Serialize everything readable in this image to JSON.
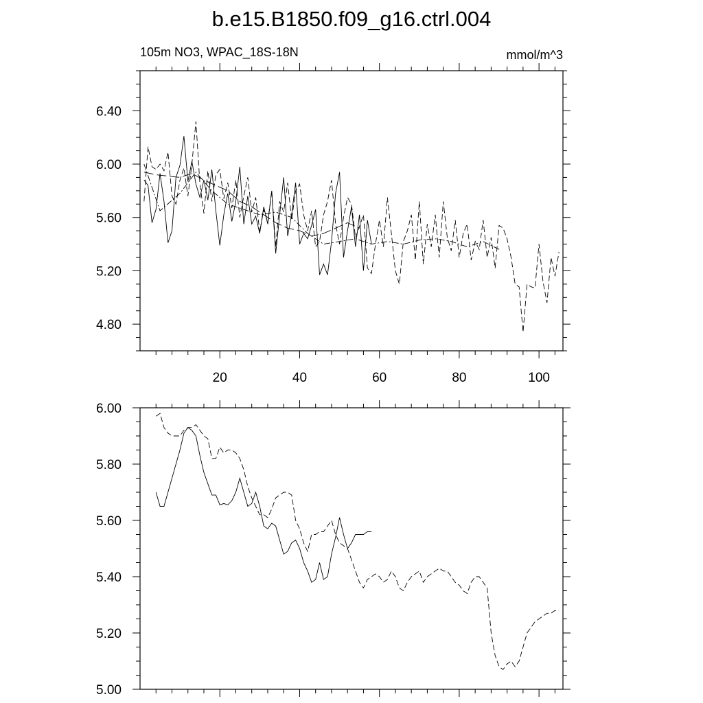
{
  "figure": {
    "title": "b.e15.B1850.f09_g16.ctrl.004",
    "left_string": "105m NO3, WPAC_18S-18N",
    "right_string": "mmol/m^3"
  },
  "chart_data": [
    {
      "type": "line",
      "title": "b.e15.B1850.f09_g16.ctrl.004",
      "xlabel": "",
      "ylabel": "",
      "xlim": [
        0,
        106
      ],
      "ylim": [
        4.6,
        6.7
      ],
      "x_ticks": [
        20,
        40,
        60,
        80,
        100
      ],
      "y_ticks": [
        4.8,
        5.2,
        5.6,
        6.0,
        6.4
      ],
      "y_tick_labels": [
        "4.80",
        "5.20",
        "5.60",
        "6.00",
        "6.40"
      ],
      "grid": false,
      "series": [
        {
          "style": "solid",
          "x": [
            1,
            2,
            3,
            4,
            5,
            6,
            7,
            8,
            9,
            10,
            11,
            12,
            13,
            14,
            15,
            16,
            17,
            18,
            19,
            20,
            21,
            22,
            23,
            24,
            25,
            26,
            27,
            28,
            29,
            30,
            31,
            32,
            33,
            34,
            35,
            36,
            37,
            38,
            39,
            40,
            41,
            42,
            43,
            44,
            45,
            46,
            47,
            48,
            49,
            50,
            51,
            52,
            53,
            54,
            55,
            56,
            57,
            58
          ],
          "y": [
            5.88,
            5.84,
            5.56,
            5.66,
            5.93,
            5.72,
            5.41,
            5.5,
            5.9,
            5.99,
            6.21,
            5.87,
            6.02,
            5.85,
            5.75,
            5.88,
            5.73,
            5.96,
            5.65,
            5.39,
            5.62,
            5.78,
            5.57,
            5.72,
            5.98,
            5.55,
            5.76,
            5.55,
            5.61,
            5.48,
            5.68,
            5.55,
            5.8,
            5.33,
            5.62,
            5.9,
            5.46,
            5.62,
            5.86,
            5.4,
            5.48,
            5.44,
            5.54,
            5.66,
            5.17,
            5.25,
            5.17,
            5.42,
            5.78,
            5.94,
            5.3,
            5.5,
            5.68,
            5.38,
            5.62,
            5.2,
            5.58,
            5.4
          ]
        },
        {
          "style": "dashed",
          "x": [
            1,
            2,
            3,
            4,
            5,
            6,
            7,
            8,
            9,
            10,
            11,
            12,
            13,
            14,
            15,
            16,
            17,
            18,
            19,
            20,
            21,
            22,
            23,
            24,
            25,
            26,
            27,
            28,
            29,
            30,
            31,
            32,
            33,
            34,
            35,
            36,
            37,
            38,
            39,
            40,
            41,
            42,
            43,
            44,
            45,
            46,
            47,
            48,
            49,
            50,
            51,
            52,
            53,
            54,
            55,
            56,
            57,
            58,
            59,
            60,
            61,
            62,
            63,
            64,
            65,
            66,
            67,
            68,
            69,
            70,
            71,
            72,
            73,
            74,
            75,
            76,
            77,
            78,
            79,
            80,
            81,
            82,
            83,
            84,
            85,
            86,
            87,
            88,
            89,
            90,
            91,
            92,
            93,
            94,
            95,
            96,
            97,
            98,
            99,
            100,
            101,
            102,
            103,
            104,
            105
          ],
          "y": [
            5.72,
            6.13,
            5.98,
            5.96,
            6.0,
            5.95,
            6.09,
            5.76,
            5.7,
            5.88,
            5.97,
            5.76,
            6.0,
            6.32,
            5.85,
            5.63,
            5.95,
            5.72,
            5.92,
            5.96,
            5.74,
            5.86,
            5.67,
            5.88,
            5.6,
            5.76,
            5.9,
            5.64,
            5.75,
            5.49,
            5.66,
            5.56,
            5.8,
            5.38,
            5.72,
            5.64,
            5.86,
            5.58,
            5.8,
            5.85,
            5.62,
            5.5,
            5.65,
            5.38,
            5.42,
            5.62,
            5.72,
            5.88,
            5.55,
            5.4,
            5.6,
            5.75,
            5.7,
            5.45,
            5.53,
            5.62,
            5.22,
            5.18,
            5.4,
            5.58,
            5.38,
            5.75,
            5.48,
            5.2,
            5.1,
            5.42,
            5.5,
            5.62,
            5.28,
            5.72,
            5.25,
            5.55,
            5.38,
            5.62,
            5.3,
            5.72,
            5.45,
            5.35,
            5.58,
            5.3,
            5.48,
            5.55,
            5.28,
            5.42,
            5.36,
            5.58,
            5.3,
            5.45,
            5.22,
            5.54,
            5.52,
            5.44,
            5.3,
            5.1,
            5.08,
            4.74,
            5.1,
            5.08,
            5.07,
            5.4,
            5.12,
            4.96,
            5.3,
            5.16,
            5.34
          ]
        },
        {
          "style": "dash-dot",
          "x": [
            1,
            5,
            10,
            14,
            18,
            22,
            26,
            30,
            34,
            38,
            42,
            46,
            50,
            54,
            58,
            62,
            66,
            70,
            74,
            78,
            82,
            86,
            90
          ],
          "y": [
            6.0,
            5.65,
            5.78,
            5.94,
            5.8,
            5.7,
            5.66,
            5.62,
            5.64,
            5.6,
            5.48,
            5.4,
            5.42,
            5.44,
            5.4,
            5.42,
            5.4,
            5.43,
            5.44,
            5.42,
            5.38,
            5.42,
            5.36
          ]
        },
        {
          "style": "long-dash",
          "x": [
            1,
            4,
            7,
            10,
            13,
            16,
            19,
            22,
            25,
            28,
            31,
            34,
            37,
            40,
            43,
            46,
            49,
            52,
            55
          ],
          "y": [
            5.94,
            5.92,
            5.91,
            5.9,
            5.93,
            5.88,
            5.84,
            5.8,
            5.72,
            5.68,
            5.62,
            5.56,
            5.52,
            5.5,
            5.46,
            5.48,
            5.52,
            5.56,
            5.52
          ]
        }
      ]
    },
    {
      "type": "line",
      "xlabel": "",
      "ylabel": "",
      "xlim": [
        0,
        106
      ],
      "ylim": [
        5.0,
        6.0
      ],
      "x_ticks": [
        20,
        40,
        60,
        80,
        100
      ],
      "y_ticks": [
        5.0,
        5.2,
        5.4,
        5.6,
        5.8,
        6.0
      ],
      "y_tick_labels": [
        "5.00",
        "5.20",
        "5.40",
        "5.60",
        "5.80",
        "6.00"
      ],
      "grid": false,
      "series": [
        {
          "style": "solid",
          "x": [
            4,
            5,
            6,
            7,
            8,
            9,
            10,
            11,
            12,
            13,
            14,
            15,
            16,
            17,
            18,
            19,
            20,
            21,
            22,
            23,
            24,
            25,
            26,
            27,
            28,
            29,
            30,
            31,
            32,
            33,
            34,
            35,
            36,
            37,
            38,
            39,
            40,
            41,
            42,
            43,
            44,
            45,
            46,
            47,
            48,
            49,
            50,
            51,
            52,
            53,
            54,
            55,
            56,
            57,
            58
          ],
          "y": [
            5.7,
            5.65,
            5.65,
            5.7,
            5.75,
            5.8,
            5.85,
            5.91,
            5.93,
            5.92,
            5.9,
            5.83,
            5.77,
            5.73,
            5.69,
            5.69,
            5.655,
            5.66,
            5.655,
            5.67,
            5.7,
            5.75,
            5.7,
            5.65,
            5.66,
            5.7,
            5.65,
            5.58,
            5.57,
            5.59,
            5.58,
            5.53,
            5.48,
            5.49,
            5.52,
            5.53,
            5.5,
            5.45,
            5.42,
            5.38,
            5.39,
            5.45,
            5.39,
            5.4,
            5.48,
            5.54,
            5.61,
            5.55,
            5.5,
            5.52,
            5.55,
            5.55,
            5.55,
            5.56,
            5.56
          ]
        },
        {
          "style": "dashed",
          "x": [
            4,
            5,
            6,
            7,
            8,
            9,
            10,
            11,
            12,
            13,
            14,
            15,
            16,
            17,
            18,
            19,
            20,
            21,
            22,
            23,
            24,
            25,
            26,
            27,
            28,
            29,
            30,
            31,
            32,
            33,
            34,
            35,
            36,
            37,
            38,
            39,
            40,
            41,
            42,
            43,
            44,
            45,
            46,
            47,
            48,
            49,
            50,
            51,
            52,
            53,
            54,
            55,
            56,
            57,
            58,
            59,
            60,
            61,
            62,
            63,
            64,
            65,
            66,
            67,
            68,
            69,
            70,
            71,
            72,
            73,
            74,
            75,
            76,
            77,
            78,
            79,
            80,
            81,
            82,
            83,
            84,
            85,
            86,
            87,
            88,
            89,
            90,
            91,
            92,
            93,
            94,
            95,
            96,
            97,
            98,
            99,
            100,
            101,
            102,
            103,
            104,
            105
          ],
          "y": [
            5.97,
            5.98,
            5.93,
            5.91,
            5.9,
            5.9,
            5.9,
            5.92,
            5.93,
            5.93,
            5.94,
            5.92,
            5.9,
            5.89,
            5.82,
            5.82,
            5.86,
            5.84,
            5.85,
            5.85,
            5.84,
            5.82,
            5.78,
            5.72,
            5.68,
            5.65,
            5.62,
            5.62,
            5.61,
            5.64,
            5.68,
            5.69,
            5.7,
            5.7,
            5.69,
            5.6,
            5.57,
            5.52,
            5.49,
            5.55,
            5.55,
            5.56,
            5.56,
            5.58,
            5.6,
            5.55,
            5.52,
            5.51,
            5.5,
            5.46,
            5.42,
            5.38,
            5.36,
            5.39,
            5.4,
            5.41,
            5.4,
            5.38,
            5.39,
            5.42,
            5.4,
            5.36,
            5.35,
            5.38,
            5.4,
            5.41,
            5.42,
            5.38,
            5.4,
            5.41,
            5.42,
            5.43,
            5.42,
            5.42,
            5.4,
            5.38,
            5.37,
            5.35,
            5.34,
            5.38,
            5.4,
            5.4,
            5.38,
            5.36,
            5.2,
            5.12,
            5.08,
            5.07,
            5.09,
            5.1,
            5.08,
            5.1,
            5.15,
            5.2,
            5.22,
            5.24,
            5.25,
            5.26,
            5.27,
            5.27,
            5.28,
            5.28
          ]
        }
      ]
    }
  ]
}
